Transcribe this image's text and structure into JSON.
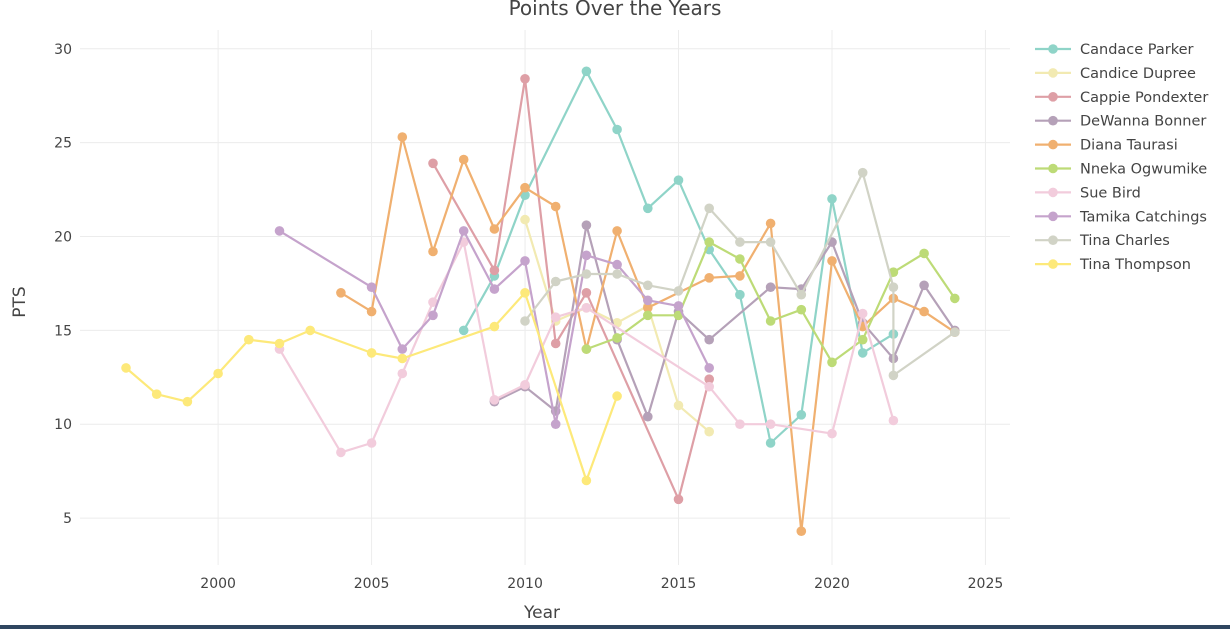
{
  "chart_data": {
    "type": "line",
    "title": "Points Over the Years",
    "xlabel": "Year",
    "ylabel": "PTS",
    "xlim": [
      1995.5,
      2025.8
    ],
    "ylim": [
      2.5,
      31
    ],
    "xticks": [
      2000,
      2005,
      2010,
      2015,
      2020,
      2025
    ],
    "yticks": [
      5,
      10,
      15,
      20,
      25,
      30
    ],
    "grid": true,
    "legend_position": "right",
    "series": [
      {
        "name": "Candace Parker",
        "color": "#8fd4c8",
        "points": [
          [
            2008,
            15.0
          ],
          [
            2009,
            17.9
          ],
          [
            2010,
            22.2
          ],
          [
            2012,
            28.8
          ],
          [
            2013,
            25.7
          ],
          [
            2014,
            21.5
          ],
          [
            2015,
            23.0
          ],
          [
            2016,
            19.3
          ],
          [
            2017,
            16.9
          ],
          [
            2018,
            9.0
          ],
          [
            2019,
            10.5
          ],
          [
            2020,
            22.0
          ],
          [
            2021,
            13.8
          ],
          [
            2022,
            14.8
          ]
        ]
      },
      {
        "name": "Candice Dupree",
        "color": "#f2eab2",
        "points": [
          [
            2010,
            20.9
          ],
          [
            2011,
            15.5
          ],
          [
            2012,
            16.2
          ],
          [
            2013,
            15.4
          ],
          [
            2014,
            16.3
          ],
          [
            2015,
            11.0
          ],
          [
            2016,
            9.6
          ]
        ]
      },
      {
        "name": "Cappie Pondexter",
        "color": "#de9fa6",
        "points": [
          [
            2007,
            23.9
          ],
          [
            2009,
            18.2
          ],
          [
            2010,
            28.4
          ],
          [
            2011,
            14.3
          ],
          [
            2012,
            17.0
          ],
          [
            2015,
            6.0
          ],
          [
            2016,
            12.4
          ]
        ]
      },
      {
        "name": "DeWanna Bonner",
        "color": "#b5a1b8",
        "points": [
          [
            2009,
            11.2
          ],
          [
            2010,
            12.0
          ],
          [
            2011,
            10.7
          ],
          [
            2012,
            20.6
          ],
          [
            2013,
            14.5
          ],
          [
            2014,
            10.4
          ],
          [
            2015,
            16.0
          ],
          [
            2016,
            14.5
          ],
          [
            2018,
            17.3
          ],
          [
            2019,
            17.2
          ],
          [
            2020,
            19.7
          ],
          [
            2021,
            15.4
          ],
          [
            2022,
            13.5
          ],
          [
            2023,
            17.4
          ],
          [
            2024,
            15.0
          ]
        ]
      },
      {
        "name": "Diana Taurasi",
        "color": "#f0b070",
        "points": [
          [
            2004,
            17.0
          ],
          [
            2005,
            16.0
          ],
          [
            2006,
            25.3
          ],
          [
            2007,
            19.2
          ],
          [
            2008,
            24.1
          ],
          [
            2009,
            20.4
          ],
          [
            2010,
            22.6
          ],
          [
            2011,
            21.6
          ],
          [
            2012,
            14.0
          ],
          [
            2013,
            20.3
          ],
          [
            2014,
            16.2
          ],
          [
            2016,
            17.8
          ],
          [
            2017,
            17.9
          ],
          [
            2018,
            20.7
          ],
          [
            2019,
            4.3
          ],
          [
            2020,
            18.7
          ],
          [
            2021,
            15.2
          ],
          [
            2022,
            16.7
          ],
          [
            2023,
            16.0
          ],
          [
            2024,
            14.9
          ]
        ]
      },
      {
        "name": "Nneka Ogwumike",
        "color": "#bddb77",
        "points": [
          [
            2012,
            14.0
          ],
          [
            2013,
            14.6
          ],
          [
            2014,
            15.8
          ],
          [
            2015,
            15.8
          ],
          [
            2016,
            19.7
          ],
          [
            2017,
            18.8
          ],
          [
            2018,
            15.5
          ],
          [
            2019,
            16.1
          ],
          [
            2020,
            13.3
          ],
          [
            2021,
            14.5
          ],
          [
            2022,
            18.1
          ],
          [
            2023,
            19.1
          ],
          [
            2024,
            16.7
          ]
        ]
      },
      {
        "name": "Sue Bird",
        "color": "#f2ccdc",
        "points": [
          [
            2002,
            14.0
          ],
          [
            2004,
            8.5
          ],
          [
            2005,
            9.0
          ],
          [
            2006,
            12.7
          ],
          [
            2007,
            16.5
          ],
          [
            2008,
            19.7
          ],
          [
            2009,
            11.3
          ],
          [
            2010,
            12.1
          ],
          [
            2011,
            15.7
          ],
          [
            2012,
            16.2
          ],
          [
            2016,
            12.0
          ],
          [
            2017,
            10.0
          ],
          [
            2018,
            10.0
          ],
          [
            2020,
            9.5
          ],
          [
            2021,
            15.9
          ],
          [
            2022,
            10.2
          ]
        ]
      },
      {
        "name": "Tamika Catchings",
        "color": "#c5a3cc",
        "points": [
          [
            2002,
            20.3
          ],
          [
            2005,
            17.3
          ],
          [
            2006,
            14.0
          ],
          [
            2007,
            15.8
          ],
          [
            2008,
            20.3
          ],
          [
            2009,
            17.2
          ],
          [
            2010,
            18.7
          ],
          [
            2011,
            10.0
          ],
          [
            2012,
            19.0
          ],
          [
            2013,
            18.5
          ],
          [
            2014,
            16.6
          ],
          [
            2015,
            16.3
          ],
          [
            2016,
            13.0
          ]
        ]
      },
      {
        "name": "Tina Charles",
        "color": "#d1d3c6",
        "points": [
          [
            2010,
            15.5
          ],
          [
            2011,
            17.6
          ],
          [
            2012,
            18.0
          ],
          [
            2013,
            18.0
          ],
          [
            2014,
            17.4
          ],
          [
            2015,
            17.1
          ],
          [
            2016,
            21.5
          ],
          [
            2017,
            19.7
          ],
          [
            2018,
            19.7
          ],
          [
            2019,
            16.9
          ],
          [
            2021,
            23.4
          ],
          [
            2022,
            17.3
          ],
          [
            2022,
            12.6
          ],
          [
            2024,
            14.9
          ]
        ]
      },
      {
        "name": "Tina Thompson",
        "color": "#fde97a",
        "points": [
          [
            1997,
            13.0
          ],
          [
            1998,
            11.6
          ],
          [
            1999,
            11.2
          ],
          [
            2000,
            12.7
          ],
          [
            2001,
            14.5
          ],
          [
            2002,
            14.3
          ],
          [
            2003,
            15.0
          ],
          [
            2005,
            13.8
          ],
          [
            2006,
            13.5
          ],
          [
            2009,
            15.2
          ],
          [
            2010,
            17.0
          ],
          [
            2012,
            7.0
          ],
          [
            2013,
            11.5
          ]
        ]
      }
    ]
  }
}
